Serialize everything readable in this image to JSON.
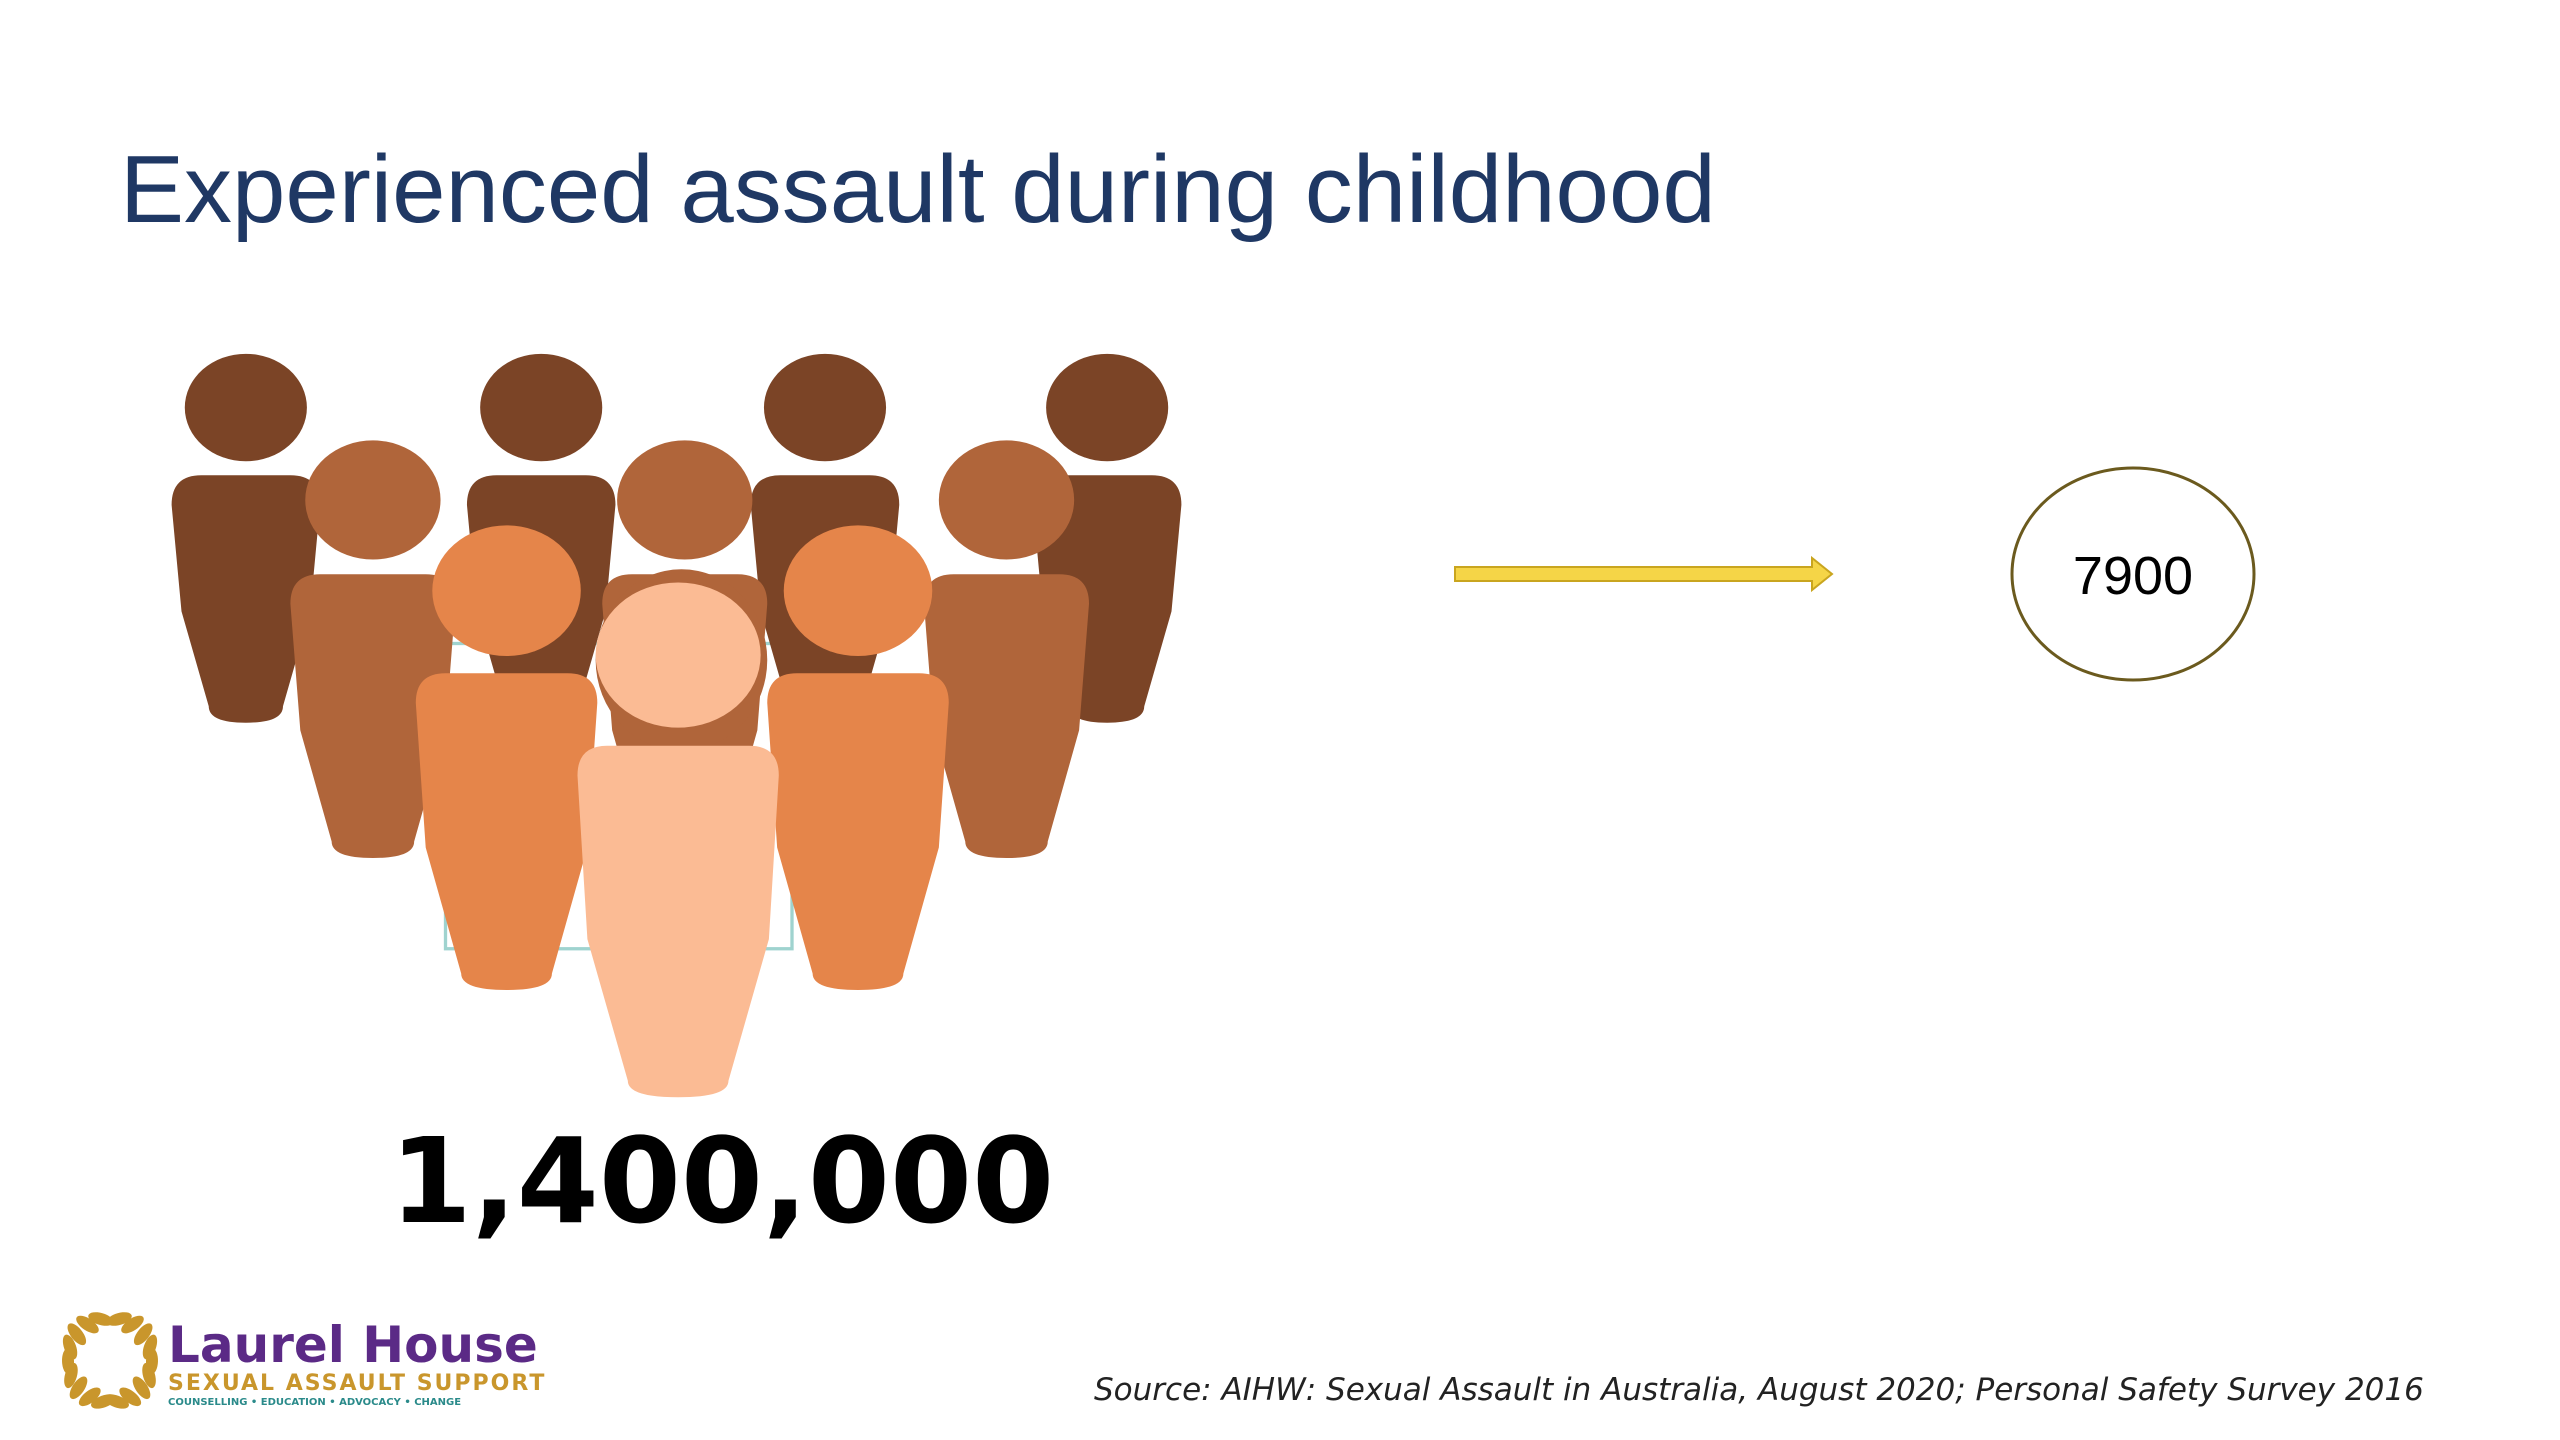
{
  "slide": {
    "title": "Experienced assault during childhood",
    "big_number": "1,400,000",
    "circle_value": "7900",
    "source": "Source: AIHW: Sexual Assault in Australia, August 2020; Personal Safety Survey 2016",
    "logo": {
      "name": "Laurel House",
      "tagline": "SEXUAL ASSAULT SUPPORT",
      "services": "COUNSELLING • EDUCATION • ADVOCACY • CHANGE"
    }
  }
}
